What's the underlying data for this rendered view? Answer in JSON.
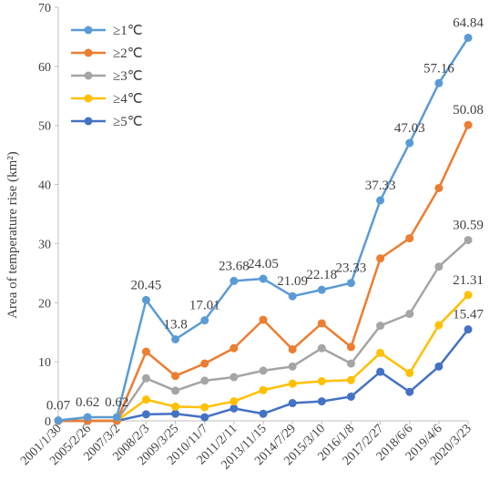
{
  "chart_data": {
    "type": "line",
    "title": "",
    "xlabel": "",
    "ylabel": "Area of temperature rise (km²)",
    "ylim": [
      0,
      70
    ],
    "yticks": [
      0,
      10,
      20,
      30,
      40,
      50,
      60,
      70
    ],
    "grid": false,
    "legend_position": "top-left",
    "categories": [
      "2001/1/30",
      "2005/2/26",
      "2007/3/2",
      "2008/2/3",
      "2009/3/25",
      "2010/11/7",
      "2011/2/11",
      "2013/11/15",
      "2014/7/29",
      "2015/3/10",
      "2016/1/8",
      "2017/2/27",
      "2018/6/6",
      "2019/4/6",
      "2020/3/23"
    ],
    "series": [
      {
        "name": "≥1℃",
        "color": "#5b9bd5",
        "values": [
          0.07,
          0.62,
          0.62,
          20.45,
          13.8,
          17.01,
          23.68,
          24.05,
          21.09,
          22.18,
          23.33,
          37.33,
          47.03,
          57.16,
          64.84
        ],
        "labels": [
          "0.07",
          "0.62",
          "0.62",
          "20.45",
          "13.8",
          "17.01",
          "23.68",
          "24.05",
          "21.09",
          "22.18",
          "23.33",
          "37.33",
          "47.03",
          "57.16",
          "64.84"
        ]
      },
      {
        "name": "≥2℃",
        "color": "#ed7d31",
        "values": [
          0,
          0,
          0,
          11.7,
          7.6,
          9.7,
          12.3,
          17.1,
          12.1,
          16.5,
          12.5,
          27.5,
          30.9,
          39.4,
          50.08
        ],
        "labels": [
          "",
          "",
          "",
          "",
          "",
          "",
          "",
          "",
          "",
          "",
          "",
          "",
          "",
          "",
          "50.08"
        ]
      },
      {
        "name": "≥3℃",
        "color": "#a5a5a5",
        "values": [
          0,
          0,
          0,
          7.2,
          5.1,
          6.8,
          7.4,
          8.5,
          9.2,
          12.3,
          9.7,
          16.1,
          18.1,
          26.1,
          30.59
        ],
        "labels": [
          "",
          "",
          "",
          "",
          "",
          "",
          "",
          "",
          "",
          "",
          "",
          "",
          "",
          "",
          "30.59"
        ]
      },
      {
        "name": "≥4℃",
        "color": "#ffc000",
        "values": [
          0,
          0,
          0,
          3.6,
          2.4,
          2.3,
          3.3,
          5.2,
          6.3,
          6.7,
          6.9,
          11.5,
          8.1,
          16.2,
          21.31
        ],
        "labels": [
          "",
          "",
          "",
          "",
          "",
          "",
          "",
          "",
          "",
          "",
          "",
          "",
          "",
          "",
          "21.31"
        ]
      },
      {
        "name": "≥5℃",
        "color": "#4472c4",
        "values": [
          0,
          0,
          0,
          1.1,
          1.2,
          0.6,
          2.1,
          1.2,
          3.0,
          3.3,
          4.1,
          8.3,
          4.9,
          9.2,
          15.47
        ],
        "labels": [
          "",
          "",
          "",
          "",
          "",
          "",
          "",
          "",
          "",
          "",
          "",
          "",
          "",
          "",
          "15.47"
        ]
      }
    ]
  }
}
